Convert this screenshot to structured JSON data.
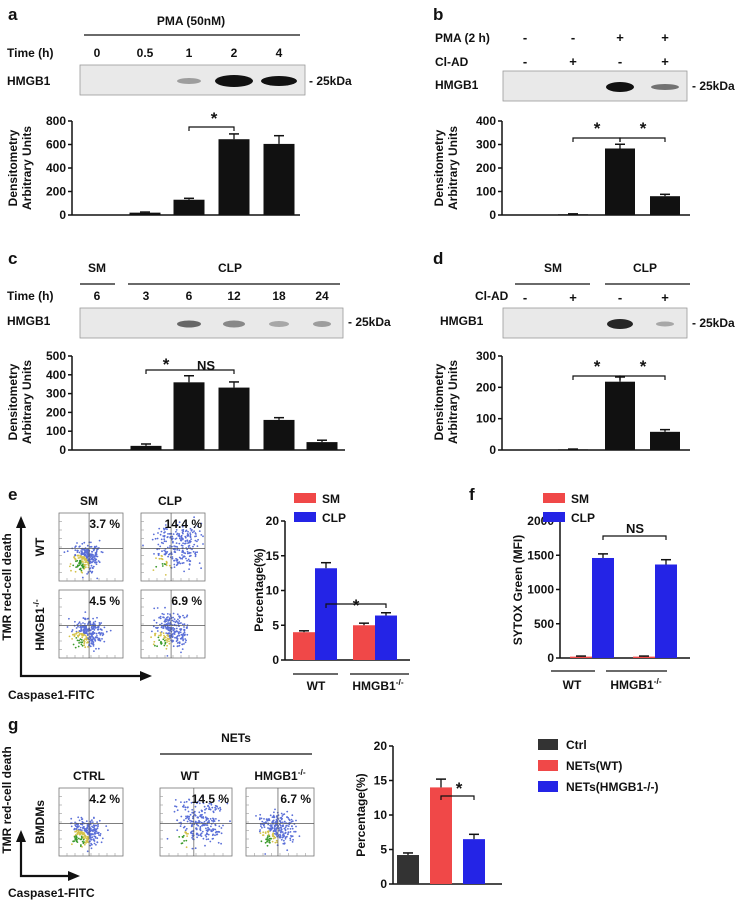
{
  "chart_data": [
    {
      "panel": "a",
      "type": "bar",
      "treatment": "PMA (50nM)",
      "row_label": "Time (h)",
      "blot_label": "HMGB1",
      "marker": "- 25kDa",
      "categories": [
        "0",
        "0.5",
        "1",
        "2",
        "4"
      ],
      "values": [
        0,
        20,
        130,
        645,
        605
      ],
      "errors": [
        0,
        5,
        12,
        45,
        70
      ],
      "ylabel": [
        "Densitometry",
        "Arbitrary Units"
      ],
      "yticks": [
        "0",
        "200",
        "400",
        "600",
        "800"
      ],
      "ylim": [
        0,
        800
      ],
      "significance": "*"
    },
    {
      "panel": "b",
      "type": "bar",
      "row_labels": [
        "PMA (2 h)",
        "Cl-AD"
      ],
      "row_values": [
        [
          "-",
          "-",
          "+",
          "+"
        ],
        [
          "-",
          "+",
          "-",
          "+"
        ]
      ],
      "blot_label": "HMGB1",
      "marker": "- 25kDa",
      "values": [
        0,
        3,
        283,
        80
      ],
      "errors": [
        0,
        2,
        18,
        8
      ],
      "ylabel": [
        "Densitometry",
        "Arbitrary Units"
      ],
      "yticks": [
        "0",
        "100",
        "200",
        "300",
        "400"
      ],
      "ylim": [
        0,
        400
      ],
      "significance": [
        "*",
        "*"
      ]
    },
    {
      "panel": "c",
      "type": "bar",
      "groups": [
        "SM",
        "CLP"
      ],
      "row_label": "Time (h)",
      "categories": [
        "6",
        "3",
        "6",
        "12",
        "18",
        "24"
      ],
      "blot_label": "HMGB1",
      "marker": "- 25kDa",
      "values": [
        0,
        22,
        360,
        332,
        160,
        42
      ],
      "errors": [
        0,
        10,
        35,
        30,
        12,
        10
      ],
      "ylabel": [
        "Densitometry",
        "Arbitrary Units"
      ],
      "yticks": [
        "0",
        "100",
        "200",
        "300",
        "400",
        "500"
      ],
      "ylim": [
        0,
        500
      ],
      "significance": [
        "*",
        "NS"
      ]
    },
    {
      "panel": "d",
      "type": "bar",
      "groups": [
        "SM",
        "CLP"
      ],
      "row_label": "Cl-AD",
      "row_values": [
        "-",
        "+",
        "-",
        "+"
      ],
      "blot_label": "HMGB1",
      "marker": "- 25kDa",
      "values": [
        0,
        2,
        218,
        58
      ],
      "errors": [
        0,
        1,
        15,
        7
      ],
      "ylabel": [
        "Densitometry",
        "Arbitrary Units"
      ],
      "yticks": [
        "0",
        "100",
        "200",
        "300"
      ],
      "ylim": [
        0,
        300
      ],
      "significance": [
        "*",
        "*"
      ]
    },
    {
      "panel": "e",
      "type": "bar",
      "categories": [
        "WT",
        "HMGB1-/-"
      ],
      "series": [
        {
          "name": "SM",
          "color": "#f04848",
          "values": [
            4.0,
            5.0
          ],
          "errors": [
            0.2,
            0.3
          ]
        },
        {
          "name": "CLP",
          "color": "#2424e6",
          "values": [
            13.2,
            6.4
          ],
          "errors": [
            0.8,
            0.4
          ]
        }
      ],
      "ylabel": "Percentage(%)",
      "yticks": [
        "0",
        "5",
        "10",
        "15",
        "20"
      ],
      "ylim": [
        0,
        20
      ],
      "significance": "*",
      "flow": {
        "cols": [
          "SM",
          "CLP"
        ],
        "rows": [
          "WT",
          "HMGB1-/-"
        ],
        "percents": [
          "3.7 %",
          "14.4 %",
          "4.5 %",
          "6.9 %"
        ],
        "xlabel": "Caspase1-FITC",
        "ylabel": "TMR red-cell death"
      }
    },
    {
      "panel": "f",
      "type": "bar",
      "categories": [
        "WT",
        "HMGB1-/-"
      ],
      "series": [
        {
          "name": "SM",
          "color": "#f04848",
          "values": [
            20,
            20
          ],
          "errors": [
            8,
            8
          ]
        },
        {
          "name": "CLP",
          "color": "#2424e6",
          "values": [
            1460,
            1365
          ],
          "errors": [
            60,
            70
          ]
        }
      ],
      "ylabel": "SYTOX Green (MFI)",
      "yticks": [
        "0",
        "500",
        "1000",
        "1500",
        "2000"
      ],
      "ylim": [
        0,
        2000
      ],
      "significance": "NS"
    },
    {
      "panel": "g",
      "type": "bar",
      "series": [
        {
          "name": "Ctrl",
          "color": "#333333",
          "value": 4.2,
          "error": 0.3
        },
        {
          "name": "NETs(WT)",
          "color": "#f04848",
          "value": 14.0,
          "error": 1.2
        },
        {
          "name": "NETs(HMGB1-/-)",
          "color": "#2424e6",
          "value": 6.5,
          "error": 0.7
        }
      ],
      "ylabel": "Percentage(%)",
      "yticks": [
        "0",
        "5",
        "10",
        "15",
        "20"
      ],
      "ylim": [
        0,
        20
      ],
      "significance": "*",
      "flow": {
        "group_label": "NETs",
        "cols": [
          "CTRL",
          "WT",
          "HMGB1-/-"
        ],
        "row_label": "BMDMs",
        "percents": [
          "4.2 %",
          "14.5 %",
          "6.7 %"
        ],
        "xlabel": "Caspase1-FITC",
        "ylabel": "TMR red-cell death"
      }
    }
  ]
}
